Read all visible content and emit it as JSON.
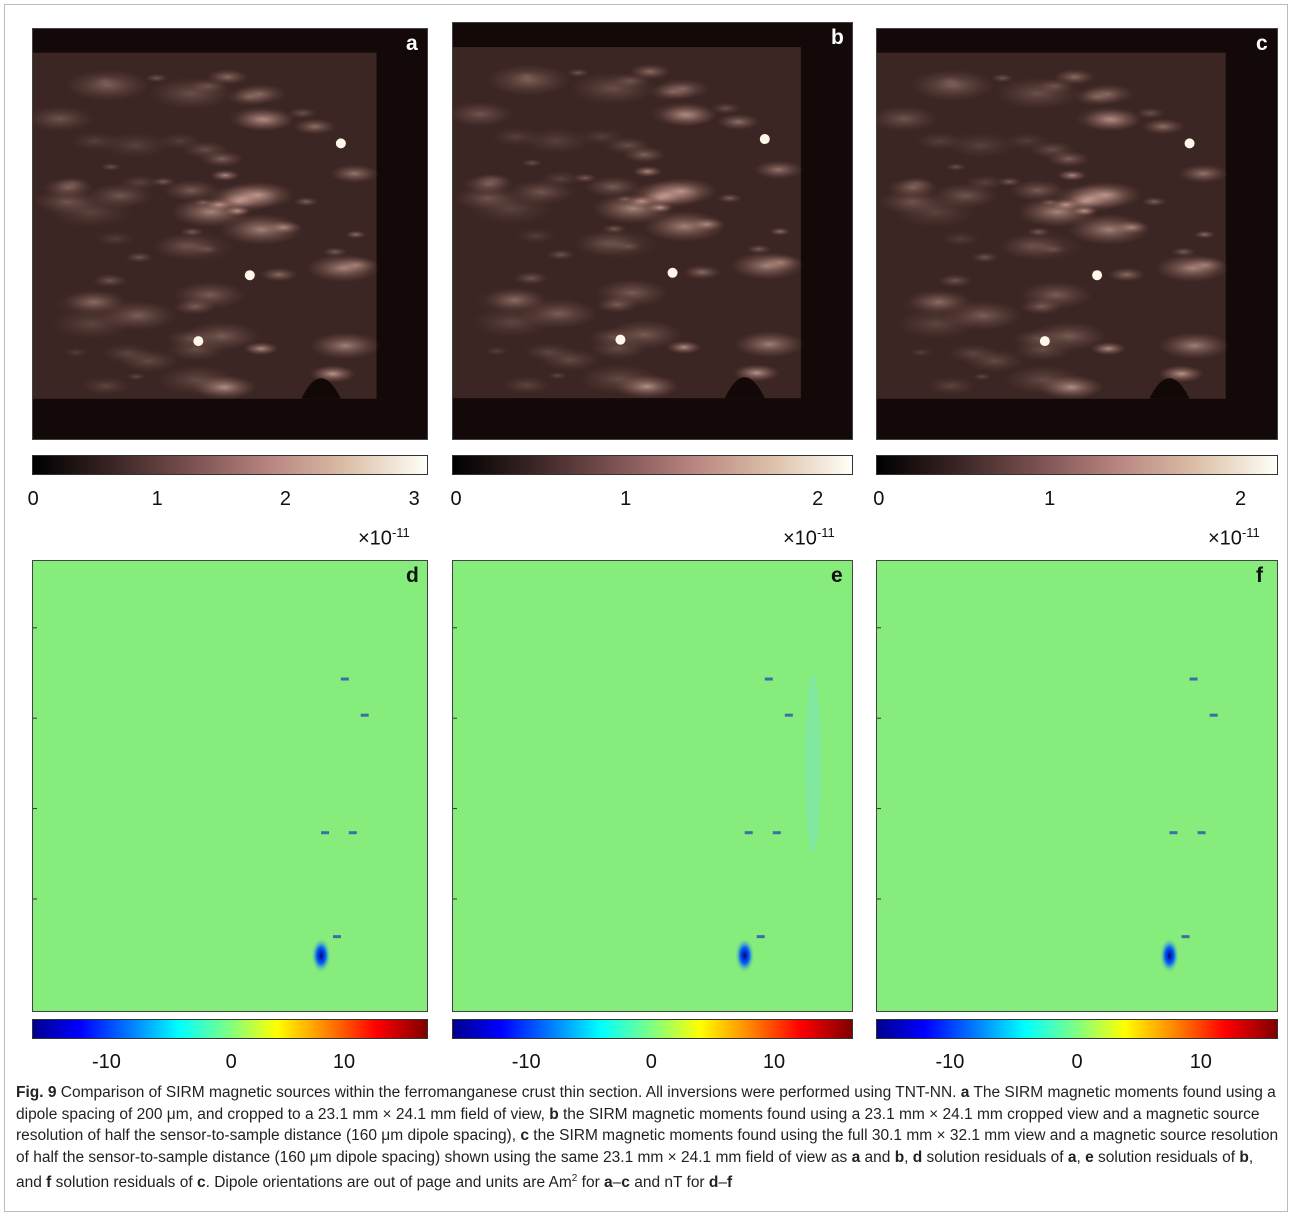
{
  "panels": [
    {
      "label": "a",
      "colormap": "copper",
      "ticks": [
        0,
        1,
        2,
        3
      ],
      "multiplier": {
        "base": "×10",
        "power": "-11"
      }
    },
    {
      "label": "b",
      "colormap": "copper",
      "ticks": [
        0,
        1,
        2
      ],
      "multiplier": {
        "base": "×10",
        "power": "-11"
      }
    },
    {
      "label": "c",
      "colormap": "copper",
      "ticks": [
        0,
        1,
        2
      ],
      "multiplier": {
        "base": "×10",
        "power": "-11"
      }
    },
    {
      "label": "d",
      "colormap": "jet",
      "ticks": [
        -10,
        0,
        10
      ]
    },
    {
      "label": "e",
      "colormap": "jet",
      "ticks": [
        -10,
        0,
        10
      ]
    },
    {
      "label": "f",
      "colormap": "jet",
      "ticks": [
        -10,
        0,
        10
      ]
    }
  ],
  "caption": {
    "parts": [
      {
        "text": "Fig. 9",
        "bold": true
      },
      {
        "text": " Comparison of SIRM magnetic sources within the ferromanganese crust thin section. All inversions were performed using TNT-NN. "
      },
      {
        "text": "a",
        "bold": true
      },
      {
        "text": " The SIRM magnetic moments found using a dipole spacing of 200 μm, and cropped to a 23.1 mm × 24.1 mm field of view, "
      },
      {
        "text": "b",
        "bold": true
      },
      {
        "text": " the SIRM magnetic moments found using a 23.1 mm × 24.1 mm cropped view and a magnetic source resolution of half the sensor-to-sample distance (160 μm dipole spacing), "
      },
      {
        "text": "c",
        "bold": true
      },
      {
        "text": " the SIRM magnetic moments found using the full 30.1 mm × 32.1 mm view and a magnetic source resolution of half the sensor-to-sample distance (160 μm dipole spacing) shown using the same 23.1 mm × 24.1 mm field of view as "
      },
      {
        "text": "a",
        "bold": true
      },
      {
        "text": " and "
      },
      {
        "text": "b",
        "bold": true
      },
      {
        "text": ", "
      },
      {
        "text": "d",
        "bold": true
      },
      {
        "text": " solution residuals of "
      },
      {
        "text": "a",
        "bold": true
      },
      {
        "text": ", "
      },
      {
        "text": "e",
        "bold": true
      },
      {
        "text": " solution residuals of "
      },
      {
        "text": "b",
        "bold": true
      },
      {
        "text": ", and "
      },
      {
        "text": "f",
        "bold": true
      },
      {
        "text": " solution residuals of "
      },
      {
        "text": "c",
        "bold": true
      },
      {
        "text": ". Dipole orientations are out of page and units are Am"
      },
      {
        "text": "2",
        "sup": true
      },
      {
        "text": " for "
      },
      {
        "text": "a",
        "bold": true
      },
      {
        "text": "–"
      },
      {
        "text": "c",
        "bold": true
      },
      {
        "text": " and nT for "
      },
      {
        "text": "d",
        "bold": true
      },
      {
        "text": "–"
      },
      {
        "text": "f",
        "bold": true
      }
    ]
  }
}
